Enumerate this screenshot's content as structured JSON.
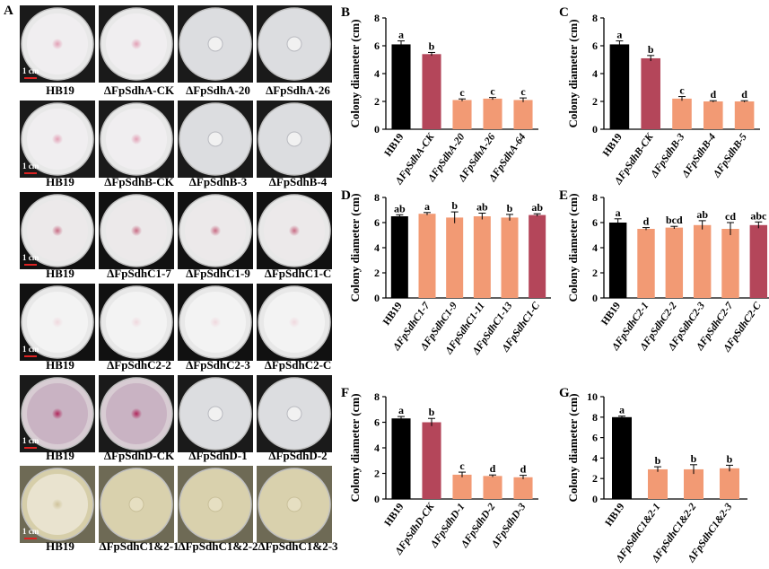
{
  "panel_a": {
    "letter": "A",
    "scale_label": "1 cm",
    "rows": [
      {
        "labels": [
          "HB19",
          "ΔFpSdhA-CK",
          "ΔFpSdhA-20",
          "ΔFpSdhA-26"
        ],
        "bg": "#1a1a1a",
        "plates": [
          "full-pink",
          "full-pink",
          "small",
          "small"
        ]
      },
      {
        "labels": [
          "HB19",
          "ΔFpSdhB-CK",
          "ΔFpSdhB-3",
          "ΔFpSdhB-4"
        ],
        "bg": "#1a1a1a",
        "plates": [
          "full-pink",
          "full-pink",
          "small",
          "small"
        ]
      },
      {
        "labels": [
          "HB19",
          "ΔFpSdhC1-7",
          "ΔFpSdhC1-9",
          "ΔFpSdhC1-C"
        ],
        "bg": "#111111",
        "plates": [
          "full-fluffy",
          "full-fluffy",
          "full-fluffy",
          "full-fluffy"
        ]
      },
      {
        "labels": [
          "HB19",
          "ΔFpSdhC2-2",
          "ΔFpSdhC2-3",
          "ΔFpSdhC2-C"
        ],
        "bg": "#111111",
        "plates": [
          "full-white",
          "full-white",
          "full-white",
          "full-white"
        ]
      },
      {
        "labels": [
          "HB19",
          "ΔFpSdhD-CK",
          "ΔFpSdhD-1",
          "ΔFpSdhD-2"
        ],
        "bg": "#1a1a1a",
        "plates": [
          "full-purple",
          "full-purple",
          "small",
          "small"
        ]
      },
      {
        "labels": [
          "HB19",
          "ΔFpSdhC1&2-1",
          "ΔFpSdhC1&2-2",
          "ΔFpSdhC1&2-3"
        ],
        "bg": "#6e6a55",
        "plates": [
          "full-yellow",
          "small-yellow",
          "small-yellow",
          "small-yellow"
        ]
      }
    ]
  },
  "colors": {
    "wt": "#000000",
    "ck": "#b4465a",
    "mutant": "#f29a74"
  },
  "chart_data": [
    {
      "letter": "B",
      "type": "bar",
      "ylabel": "Colony diameter (cm)",
      "ylim": [
        0,
        8
      ],
      "yticks": [
        0,
        2,
        4,
        6,
        8
      ],
      "categories": [
        "HB19",
        "ΔFpSdhA-CK",
        "ΔFpSdhA-20",
        "ΔFpSdhA-26",
        "ΔFpSdhA-64"
      ],
      "values": [
        6.1,
        5.4,
        2.1,
        2.2,
        2.1
      ],
      "errors": [
        0.25,
        0.12,
        0.08,
        0.08,
        0.15
      ],
      "letters": [
        "a",
        "b",
        "c",
        "c",
        "c"
      ],
      "colors": [
        "wt",
        "ck",
        "mutant",
        "mutant",
        "mutant"
      ]
    },
    {
      "letter": "C",
      "type": "bar",
      "ylabel": "Colony diameter (cm)",
      "ylim": [
        0,
        8
      ],
      "yticks": [
        0,
        2,
        4,
        6,
        8
      ],
      "categories": [
        "HB19",
        "ΔFpSdhB-CK",
        "ΔFpSdhB-3",
        "ΔFpSdhB-4",
        "ΔFpSdhB-5"
      ],
      "values": [
        6.1,
        5.1,
        2.2,
        2.0,
        2.0
      ],
      "errors": [
        0.25,
        0.2,
        0.15,
        0.05,
        0.05
      ],
      "letters": [
        "a",
        "b",
        "c",
        "d",
        "d"
      ],
      "colors": [
        "wt",
        "ck",
        "mutant",
        "mutant",
        "mutant"
      ]
    },
    {
      "letter": "D",
      "type": "bar",
      "ylabel": "Colony diameter (cm)",
      "ylim": [
        0,
        8
      ],
      "yticks": [
        0,
        2,
        4,
        6,
        8
      ],
      "categories": [
        "HB19",
        "ΔFpSdhC1-7",
        "ΔFpSdhC1-9",
        "ΔFpSdhC1-11",
        "ΔFpSdhC1-13",
        "ΔFpSdhC1-C"
      ],
      "values": [
        6.5,
        6.7,
        6.4,
        6.5,
        6.4,
        6.6
      ],
      "errors": [
        0.12,
        0.1,
        0.45,
        0.25,
        0.25,
        0.1
      ],
      "letters": [
        "ab",
        "a",
        "b",
        "ab",
        "b",
        "ab"
      ],
      "colors": [
        "wt",
        "mutant",
        "mutant",
        "mutant",
        "mutant",
        "ck"
      ]
    },
    {
      "letter": "E",
      "type": "bar",
      "ylabel": "Colony diameter (cm)",
      "ylim": [
        0,
        8
      ],
      "yticks": [
        0,
        2,
        4,
        6,
        8
      ],
      "categories": [
        "HB19",
        "ΔFpSdhC2-1",
        "ΔFpSdhC2-2",
        "ΔFpSdhC2-3",
        "ΔFpSdhC2-7",
        "ΔFpSdhC2-C"
      ],
      "values": [
        6.0,
        5.5,
        5.6,
        5.8,
        5.5,
        5.8
      ],
      "errors": [
        0.3,
        0.1,
        0.1,
        0.35,
        0.5,
        0.25
      ],
      "letters": [
        "a",
        "d",
        "bcd",
        "ab",
        "cd",
        "abc"
      ],
      "colors": [
        "wt",
        "mutant",
        "mutant",
        "mutant",
        "mutant",
        "ck"
      ]
    },
    {
      "letter": "F",
      "type": "bar",
      "ylabel": "Colony diameter (cm)",
      "ylim": [
        0,
        8
      ],
      "yticks": [
        0,
        2,
        4,
        6,
        8
      ],
      "categories": [
        "HB19",
        "ΔFpSdhD-CK",
        "ΔFpSdhD-1",
        "ΔFpSdhD-2",
        "ΔFpSdhD-3"
      ],
      "values": [
        6.3,
        6.0,
        1.9,
        1.8,
        1.7
      ],
      "errors": [
        0.15,
        0.3,
        0.2,
        0.08,
        0.15
      ],
      "letters": [
        "a",
        "b",
        "c",
        "d",
        "d"
      ],
      "colors": [
        "wt",
        "ck",
        "mutant",
        "mutant",
        "mutant"
      ]
    },
    {
      "letter": "G",
      "type": "bar",
      "ylabel": "Colony diameter (cm)",
      "ylim": [
        0,
        10
      ],
      "yticks": [
        0,
        2,
        4,
        6,
        8,
        10
      ],
      "categories": [
        "HB19",
        "ΔFpSdhC1&2-1",
        "ΔFpSdhC1&2-2",
        "ΔFpSdhC1&2-3"
      ],
      "values": [
        8.0,
        2.9,
        2.9,
        3.0
      ],
      "errors": [
        0.1,
        0.25,
        0.45,
        0.3
      ],
      "letters": [
        "a",
        "b",
        "b",
        "b"
      ],
      "colors": [
        "wt",
        "mutant",
        "mutant",
        "mutant"
      ]
    }
  ]
}
